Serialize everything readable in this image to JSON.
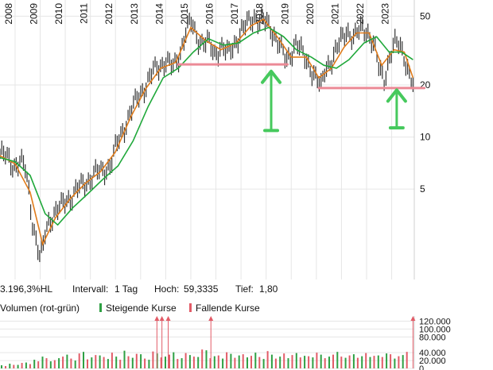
{
  "chart_data": [
    {
      "type": "line",
      "scale": "log",
      "x_ticks": [
        "2008",
        "2009",
        "2010",
        "2011",
        "2012",
        "2013",
        "2014",
        "2015",
        "2016",
        "2017",
        "2018",
        "2019",
        "2020",
        "2021",
        "2022",
        "2023"
      ],
      "y_ticks": [
        "50",
        "20",
        "10",
        "5"
      ],
      "xlim": [
        2007.4,
        2023.9
      ],
      "ylim": [
        1.5,
        62
      ],
      "grid": true,
      "series": [
        {
          "color": "#333333",
          "style": "ohlc-bars",
          "x": [
            2007.4,
            2007.7,
            2007.95,
            2008.2,
            2008.4,
            2008.55,
            2008.7,
            2008.85,
            2009.0,
            2009.1,
            2009.2,
            2009.35,
            2009.55,
            2009.8,
            2010.0,
            2010.3,
            2010.6,
            2010.9,
            2011.2,
            2011.5,
            2011.8,
            2012.0,
            2012.3,
            2012.6,
            2012.9,
            2013.2,
            2013.5,
            2013.8,
            2014.0,
            2014.3,
            2014.55,
            2014.8,
            2015.0,
            2015.2,
            2015.4,
            2015.7,
            2015.95,
            2016.2,
            2016.5,
            2016.8,
            2017.0,
            2017.3,
            2017.55,
            2017.75,
            2018.0,
            2018.3,
            2018.55,
            2018.8,
            2019.0,
            2019.2,
            2019.5,
            2019.8,
            2020.0,
            2020.2,
            2020.35,
            2020.6,
            2020.9,
            2021.2,
            2021.5,
            2021.8,
            2022.0,
            2022.3,
            2022.5,
            2022.7,
            2022.9,
            2023.1,
            2023.3,
            2023.5,
            2023.65,
            2023.85
          ],
          "values": [
            8.0,
            7.6,
            6.8,
            7.2,
            6.6,
            4.9,
            3.2,
            2.5,
            1.95,
            2.2,
            2.8,
            3.3,
            3.6,
            3.9,
            4.3,
            4.6,
            5.2,
            5.6,
            6.2,
            6.4,
            6.9,
            8.6,
            11,
            14,
            17,
            20,
            24,
            26,
            28,
            25,
            30,
            41,
            46,
            39,
            36,
            35,
            30,
            34,
            30,
            36,
            41,
            46,
            50,
            47,
            46,
            40,
            34,
            27,
            31,
            36,
            29,
            25,
            22,
            19,
            25,
            28,
            34,
            42,
            37,
            43,
            42,
            33,
            25,
            22,
            28,
            34,
            35,
            30,
            24,
            19.5
          ]
        },
        {
          "color": "#e07b1a",
          "style": "line",
          "x": [
            2007.4,
            2008.0,
            2008.6,
            2009.1,
            2009.6,
            2010.2,
            2010.8,
            2011.4,
            2012.0,
            2012.6,
            2013.2,
            2013.8,
            2014.4,
            2015.0,
            2015.6,
            2016.2,
            2016.8,
            2017.4,
            2017.9,
            2018.5,
            2019.0,
            2019.6,
            2020.1,
            2020.6,
            2021.1,
            2021.6,
            2022.1,
            2022.6,
            2023.1,
            2023.5,
            2023.85
          ],
          "values": [
            7.8,
            7.0,
            4.8,
            2.4,
            3.4,
            4.4,
            5.4,
            6.3,
            8.2,
            13,
            19,
            25,
            27,
            43,
            36,
            32,
            35,
            44,
            48,
            37,
            29,
            29,
            22,
            25,
            33,
            40,
            40,
            26,
            32,
            31,
            22
          ]
        },
        {
          "color": "#1fa83a",
          "style": "line",
          "x": [
            2007.4,
            2008.0,
            2008.6,
            2009.2,
            2009.7,
            2010.3,
            2010.9,
            2011.5,
            2012.1,
            2012.7,
            2013.3,
            2013.9,
            2014.5,
            2015.1,
            2015.7,
            2016.3,
            2016.9,
            2017.5,
            2018.1,
            2018.7,
            2019.2,
            2019.8,
            2020.3,
            2020.8,
            2021.3,
            2021.9,
            2022.4,
            2022.9,
            2023.4,
            2023.85
          ],
          "values": [
            7.6,
            7.2,
            6.0,
            3.6,
            3.1,
            3.9,
            4.7,
            5.7,
            6.8,
            9.5,
            15,
            22,
            25,
            31,
            37,
            34,
            35,
            40,
            43,
            38,
            32,
            29,
            26,
            25,
            28,
            35,
            38,
            31,
            31,
            28
          ]
        }
      ],
      "annotations": {
        "support_lines": [
          {
            "color": "#ec8a96",
            "x": [
              2014.5,
              2018.85
            ],
            "value": 26.3
          },
          {
            "color": "#ec8a96",
            "x": [
              2020.1,
              2024.3
            ],
            "value": 19.2
          }
        ],
        "arrows": [
          {
            "color": "#46c95d",
            "x": 2018.2,
            "value_top": 24,
            "value_bottom": 10.9
          },
          {
            "color": "#46c95d",
            "x": 2023.2,
            "value_top": 18.7,
            "value_bottom": 11.3
          }
        ]
      }
    },
    {
      "type": "bar",
      "y_ticks": [
        "120.000",
        "100.000",
        "80.000",
        "40.000",
        "20.000",
        "0"
      ],
      "ylim": [
        0,
        125000
      ],
      "grid": true,
      "series": [
        {
          "name": "Steigende Kurse",
          "color": "#2ea043",
          "values": [
            8000,
            12000,
            9000,
            15000,
            22000,
            30000,
            18000,
            26000,
            35000,
            20000,
            42000,
            28000,
            33000,
            24000,
            30000,
            45000,
            27000,
            36000,
            22000,
            38000,
            30000,
            41000,
            26000,
            34000,
            29000,
            46000,
            31000,
            25000,
            37000,
            33000,
            28000,
            40000,
            24000,
            35000,
            30000,
            26000,
            39000,
            32000,
            28000,
            35000,
            30000,
            42000,
            27000,
            36000,
            31000,
            29000,
            33000,
            38000,
            25000,
            34000
          ]
        },
        {
          "name": "Fallende Kurse",
          "color": "#e25b67",
          "values": [
            6000,
            9000,
            14000,
            11000,
            18000,
            26000,
            21000,
            30000,
            25000,
            38000,
            23000,
            34000,
            29000,
            40000,
            22000,
            31000,
            37000,
            25000,
            43000,
            28000,
            35000,
            24000,
            39000,
            30000,
            48000,
            26000,
            33000,
            41000,
            27000,
            36000,
            32000,
            29000,
            44000,
            25000,
            38000,
            34000,
            28000,
            31000,
            40000,
            26000,
            35000,
            30000,
            33000,
            27000,
            39000,
            32000,
            29000,
            36000,
            31000,
            42000
          ]
        }
      ],
      "spikes_above_range_at": [
        2013.65,
        2013.85,
        2014.1,
        2015.8,
        2023.85
      ]
    }
  ],
  "stats": {
    "performance": "3.196,3%HL",
    "interval_label": "Intervall:",
    "interval": "1 Tag",
    "high_label": "Hoch:",
    "high": "59,3335",
    "low_label": "Tief:",
    "low": "1,80"
  },
  "volume_legend": {
    "title": "Volumen (rot-grün)",
    "rising": "Steigende Kurse",
    "falling": "Fallende Kurse"
  },
  "colors": {
    "grid": "#e6e6e6",
    "text": "#111111",
    "up": "#2ea043",
    "down": "#e25b67",
    "annotation_red": "#ec8a96",
    "annotation_green": "#46c95d"
  }
}
